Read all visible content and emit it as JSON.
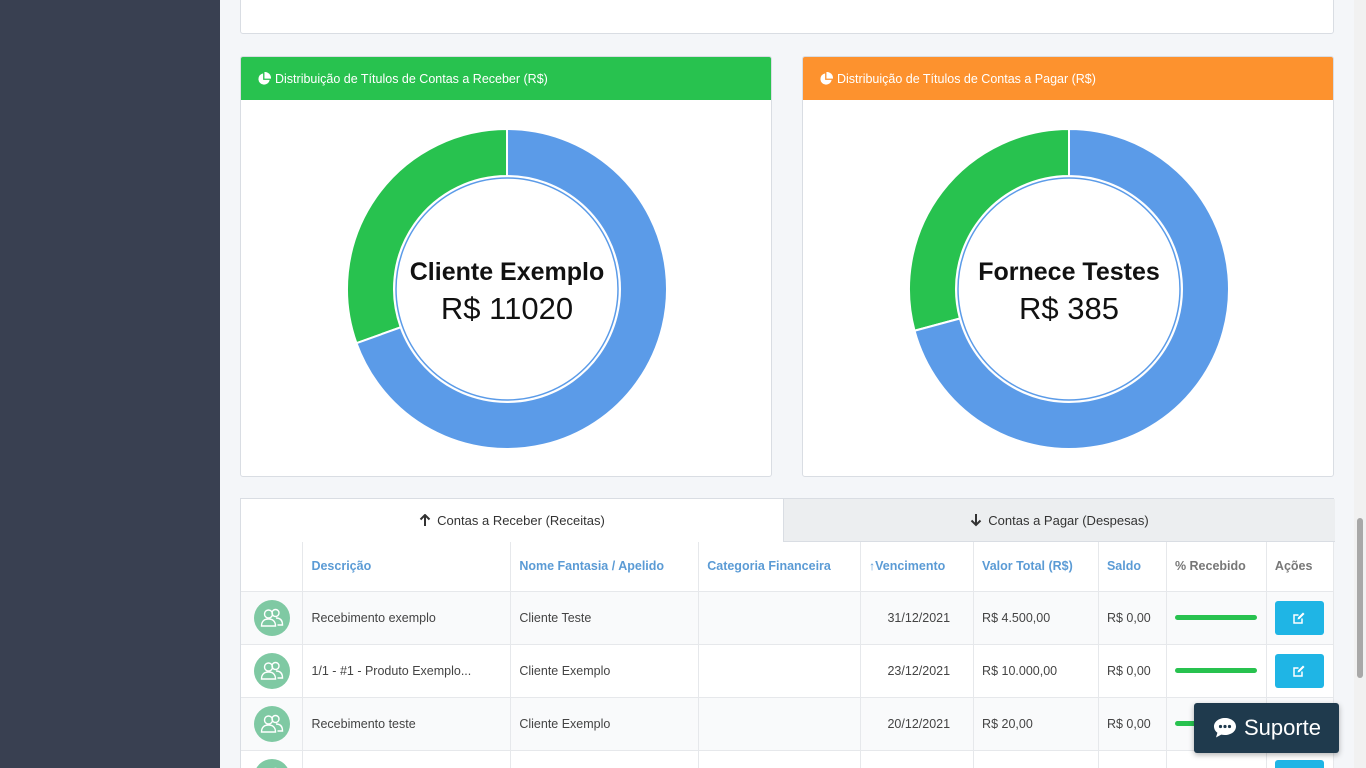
{
  "charts": {
    "receber": {
      "header": "Distribuição de Títulos de Contas a Receber (R$)",
      "center_name": "Cliente Exemplo",
      "center_value": "R$ 11020",
      "segments": [
        {
          "color": "#5b9be8",
          "fraction": 0.695
        },
        {
          "color": "#28c24f",
          "fraction": 0.305
        }
      ]
    },
    "pagar": {
      "header": "Distribuição de Títulos de Contas a Pagar (R$)",
      "center_name": "Fornece Testes",
      "center_value": "R$ 385",
      "segments": [
        {
          "color": "#5b9be8",
          "fraction": 0.708
        },
        {
          "color": "#28c24f",
          "fraction": 0.292
        }
      ]
    }
  },
  "tabs": {
    "receber": "Contas a Receber (Receitas)",
    "pagar": "Contas a Pagar (Despesas)"
  },
  "table": {
    "headers": {
      "descricao": "Descrição",
      "nome": "Nome Fantasia / Apelido",
      "categoria": "Categoria Financeira",
      "vencimento": "Vencimento",
      "valor": "Valor Total (R$)",
      "saldo": "Saldo",
      "recebido": "% Recebido",
      "acoes": "Ações"
    },
    "rows": [
      {
        "descricao": "Recebimento exemplo",
        "nome": "Cliente Teste",
        "categoria": "",
        "vencimento": "31/12/2021",
        "valor": "R$ 4.500,00",
        "saldo": "R$ 0,00",
        "recebido": 1.0
      },
      {
        "descricao": "1/1 - #1 - Produto Exemplo...",
        "nome": "Cliente Exemplo",
        "categoria": "",
        "vencimento": "23/12/2021",
        "valor": "R$ 10.000,00",
        "saldo": "R$ 0,00",
        "recebido": 1.0
      },
      {
        "descricao": "Recebimento teste",
        "nome": "Cliente Exemplo",
        "categoria": "",
        "vencimento": "20/12/2021",
        "valor": "R$ 20,00",
        "saldo": "R$ 0,00",
        "recebido": 1.0
      },
      {
        "descricao": "",
        "nome": "",
        "categoria": "",
        "vencimento": "",
        "valor": "",
        "saldo": "",
        "recebido": 1.0
      }
    ]
  },
  "support": {
    "label": "Suporte"
  },
  "colors": {
    "green": "#28c24f",
    "orange": "#fd922e",
    "blue": "#5b9be8",
    "sidebar": "#394051",
    "button": "#1fb5e5"
  }
}
